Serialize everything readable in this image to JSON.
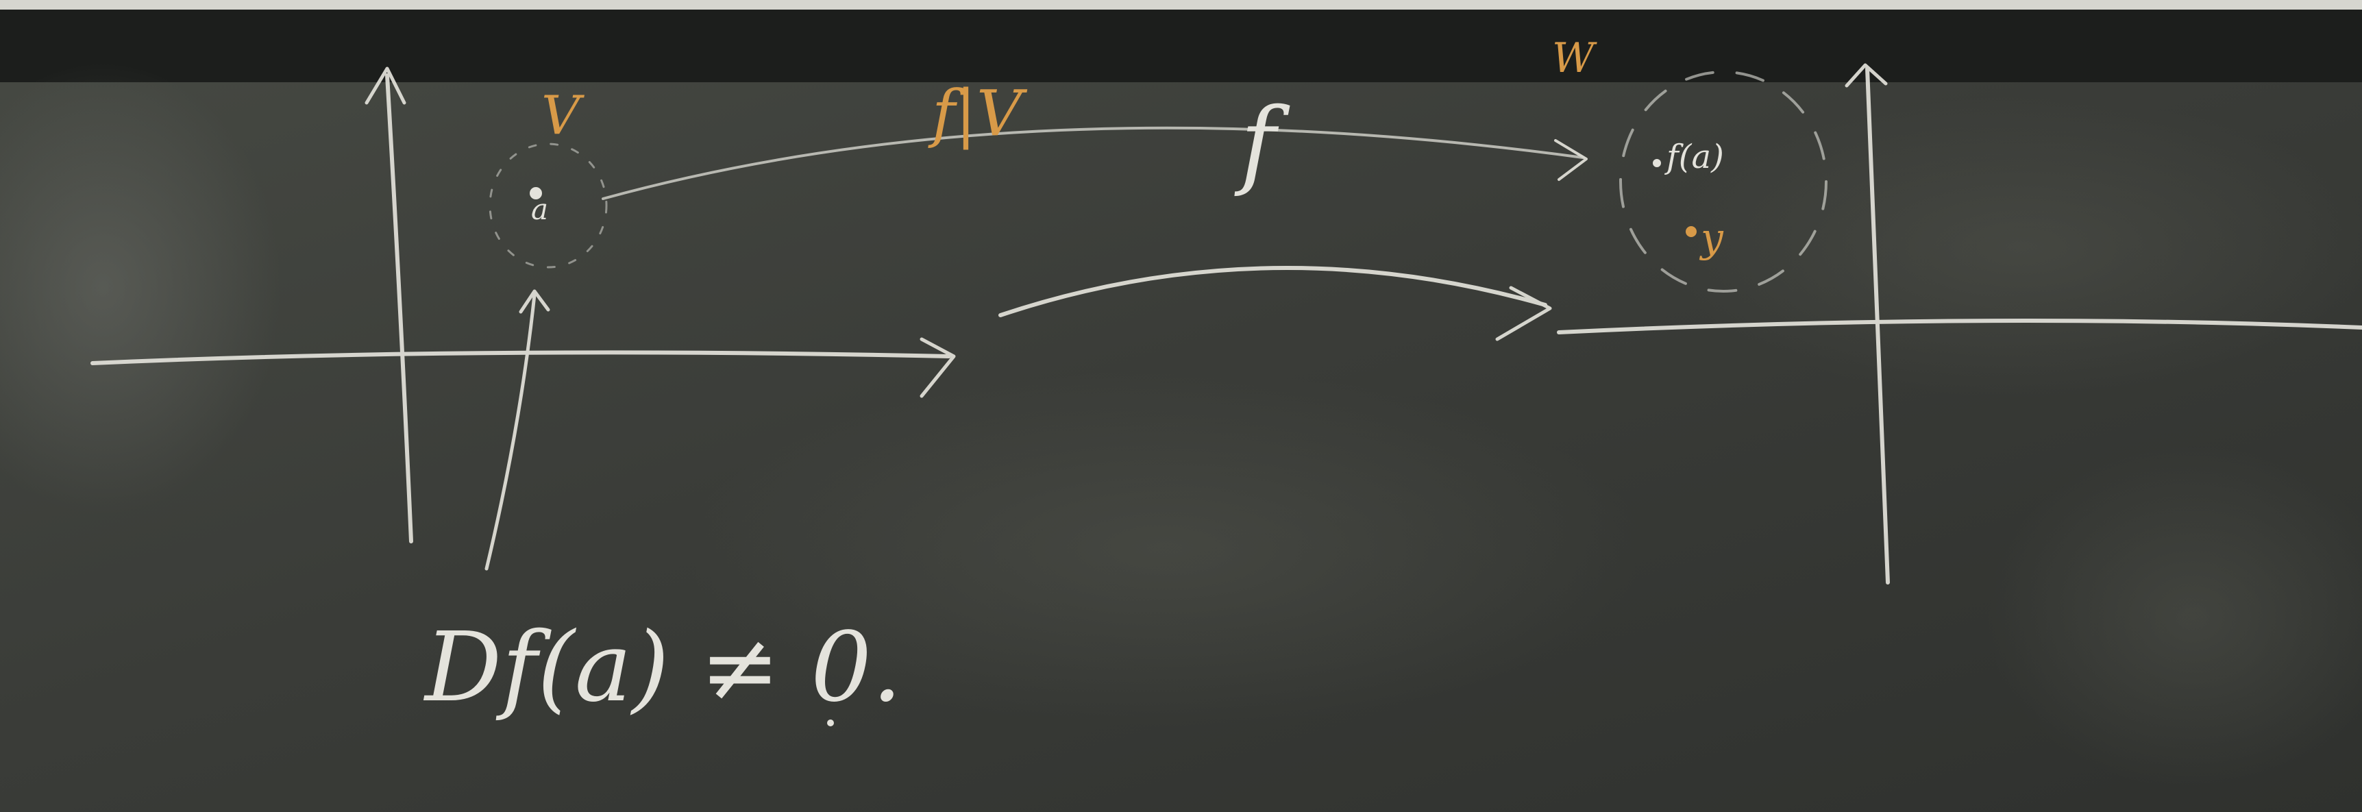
{
  "board": {
    "colors": {
      "top_band": "#d6d6cf",
      "frame": "#1c1e1c",
      "board": "#3a3c38",
      "chalk_white": "#e4e3dc",
      "chalk_orange": "#d89a48"
    },
    "labels": {
      "set_v": "V",
      "point_a": "a",
      "restriction": "f|V",
      "map_f": "f",
      "set_w": "W",
      "point_fa": "f(a)",
      "point_y": "y",
      "condition": "Df(a) ≠ 0."
    }
  }
}
